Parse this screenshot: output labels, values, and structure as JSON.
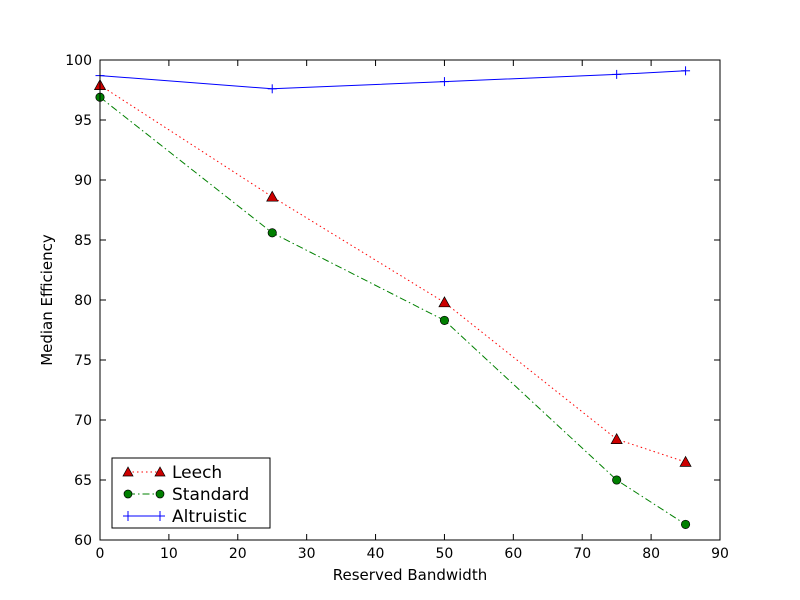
{
  "chart_data": {
    "type": "line",
    "xlabel": "Reserved Bandwidth",
    "ylabel": "Median Efficiency",
    "xlim": [
      0,
      90
    ],
    "ylim": [
      60,
      100
    ],
    "xticks": [
      0,
      10,
      20,
      30,
      40,
      50,
      60,
      70,
      80,
      90
    ],
    "yticks": [
      60,
      65,
      70,
      75,
      80,
      85,
      90,
      95,
      100
    ],
    "grid": false,
    "legend_position": "lower-left",
    "series": [
      {
        "name": "Leech",
        "color": "#ff0000",
        "line_style": "dotted",
        "marker": "triangle",
        "marker_fill": "#cc0000",
        "x": [
          0,
          25,
          50,
          75,
          85
        ],
        "y": [
          97.9,
          88.6,
          79.8,
          68.4,
          66.5
        ]
      },
      {
        "name": "Standard",
        "color": "#008000",
        "line_style": "dash-dot",
        "marker": "circle",
        "marker_fill": "#007f00",
        "x": [
          0,
          25,
          50,
          75,
          85
        ],
        "y": [
          96.9,
          85.6,
          78.3,
          65.0,
          61.3
        ]
      },
      {
        "name": "Altruistic",
        "color": "#0000ff",
        "line_style": "solid",
        "marker": "plus",
        "marker_fill": "#0000ff",
        "x": [
          0,
          25,
          50,
          75,
          85
        ],
        "y": [
          98.7,
          97.6,
          98.2,
          98.8,
          99.1
        ]
      }
    ]
  }
}
